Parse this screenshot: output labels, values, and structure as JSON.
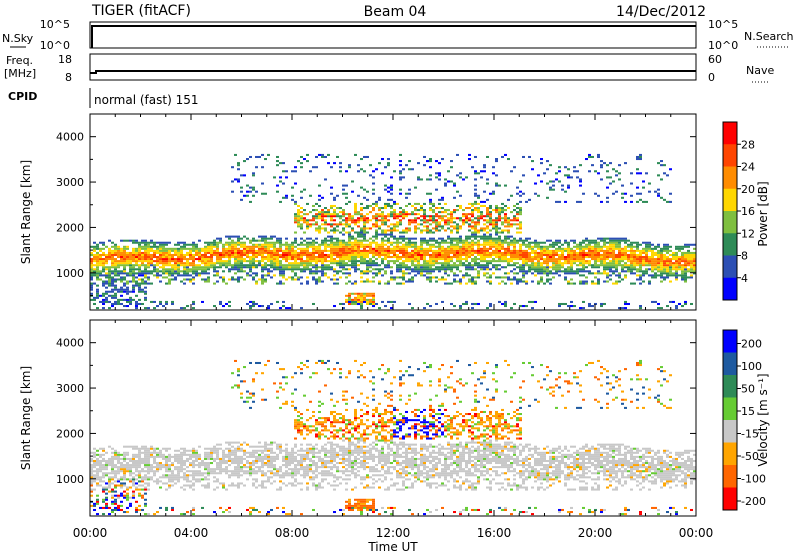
{
  "header": {
    "radar": "TIGER (fitACF)",
    "beam": "Beam 04",
    "date": "14/Dec/2012"
  },
  "sky_panel": {
    "left_label": "N.Sky",
    "right_label": "N.Search",
    "left_ticks": [
      "10^5",
      "10^0"
    ],
    "right_ticks": [
      "10^5",
      "10^0"
    ]
  },
  "freq_panel": {
    "left_label_1": "Freq.",
    "left_label_2": "[MHz]",
    "right_label": "Nave",
    "left_ticks": [
      "18",
      "8"
    ],
    "right_ticks": [
      "60",
      "0"
    ]
  },
  "cpid_panel": {
    "label": "CPID",
    "text": "normal (fast) 151"
  },
  "chart_data": [
    {
      "type": "heatmap",
      "name": "power",
      "ylabel": "Slant Range [km]",
      "ylim": [
        180,
        4500
      ],
      "y_ticks": [
        1000,
        2000,
        3000,
        4000
      ],
      "xlim_hours": [
        0,
        24
      ],
      "colorbar": {
        "label": "Power [dB]",
        "ticks": [
          "4",
          "8",
          "12",
          "16",
          "20",
          "24",
          "28"
        ],
        "colors": [
          "#0000ff",
          "#2c4fb4",
          "#2e8b57",
          "#7fbf3f",
          "#ffd700",
          "#ff8c00",
          "#ff4500",
          "#ff0000"
        ]
      },
      "echo_bands": [
        {
          "range_km": [
            1200,
            1700
          ],
          "hours": [
            0,
            24
          ],
          "peak_db": 28
        },
        {
          "range_km": [
            1800,
            2500
          ],
          "hours": [
            8,
            17
          ],
          "peak_db": 24
        },
        {
          "range_km": [
            2500,
            3600
          ],
          "hours": [
            6,
            23
          ],
          "peak_db": 12
        },
        {
          "range_km": [
            300,
            1000
          ],
          "hours": [
            0,
            2
          ],
          "peak_db": 8
        },
        {
          "range_km": [
            250,
            500
          ],
          "hours": [
            10,
            11
          ],
          "peak_db": 24
        }
      ]
    },
    {
      "type": "heatmap",
      "name": "velocity",
      "ylabel": "Slant Range [km]",
      "ylim": [
        180,
        4500
      ],
      "y_ticks": [
        1000,
        2000,
        3000,
        4000
      ],
      "xlim_hours": [
        0,
        24
      ],
      "colorbar": {
        "label": "Velocity [m s⁻¹]",
        "ticks": [
          "200",
          "100",
          "50",
          "15",
          "-15",
          "-50",
          "-100",
          "-200"
        ],
        "colors": [
          "#0000ff",
          "#1e5aa0",
          "#2e8b57",
          "#66cc33",
          "#c8c8c8",
          "#ffa500",
          "#ff6600",
          "#ff0000"
        ]
      },
      "echo_bands": [
        {
          "range_km": [
            800,
            1800
          ],
          "hours": [
            0,
            24
          ],
          "velocity": "ground scatter"
        },
        {
          "range_km": [
            1800,
            2500
          ],
          "hours": [
            8,
            17
          ],
          "velocity": "-50 to 200"
        },
        {
          "range_km": [
            250,
            500
          ],
          "hours": [
            10,
            11
          ],
          "velocity": "-100"
        }
      ]
    }
  ],
  "x_axis": {
    "ticks": [
      "00:00",
      "04:00",
      "08:00",
      "12:00",
      "16:00",
      "20:00",
      "00:00"
    ],
    "label": "Time UT"
  }
}
